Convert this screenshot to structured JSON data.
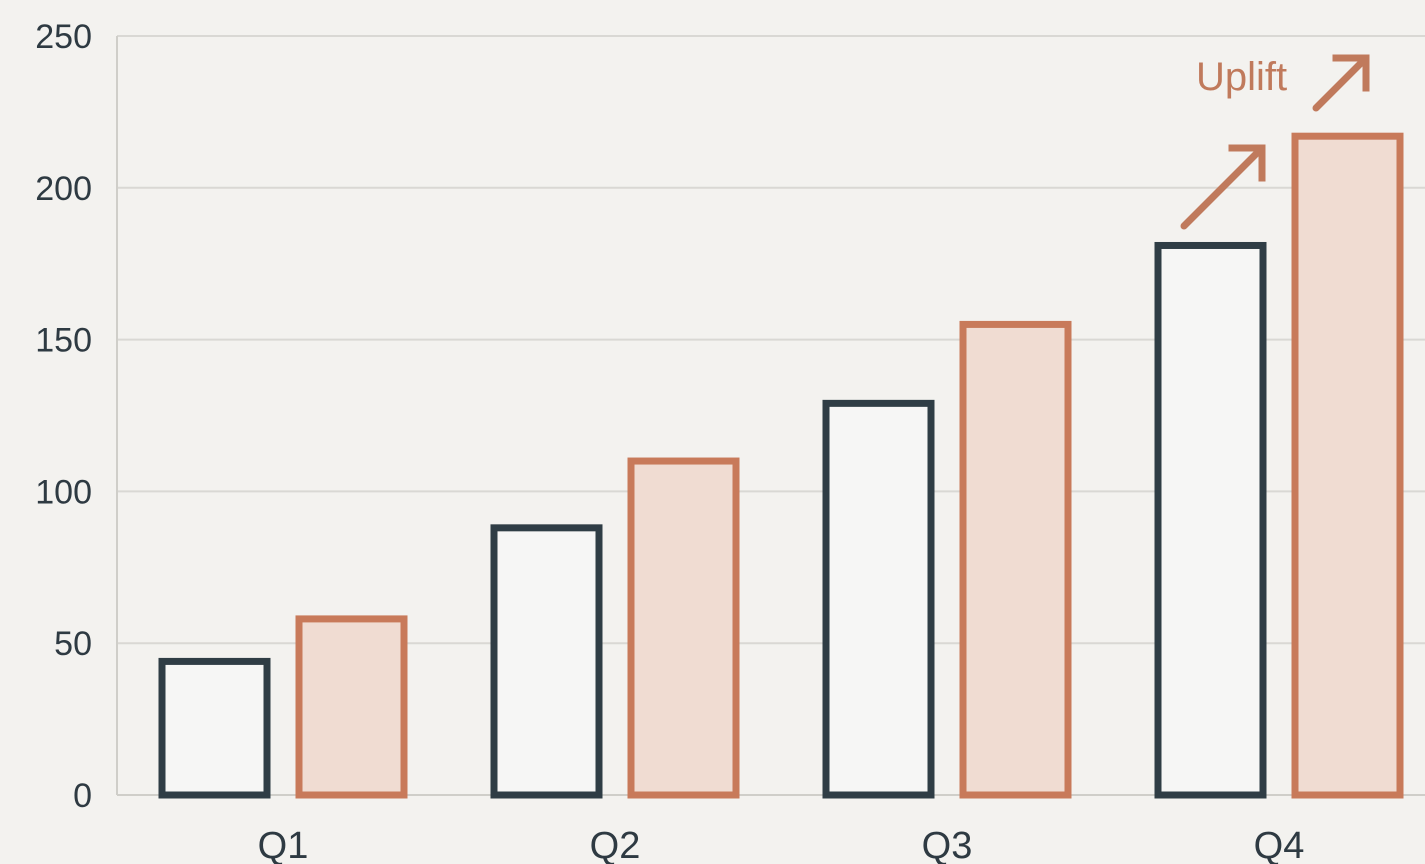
{
  "colors": {
    "background": "#f3f2ef",
    "series_a_stroke": "#2f3d45",
    "series_a_fill": "#f6f6f5",
    "series_b_stroke": "#c87a5a",
    "series_b_fill": "#f0dcd2",
    "annotation": "#c07a5c",
    "grid": "#d9d8d4"
  },
  "chart_data": {
    "type": "bar",
    "categories": [
      "Q1",
      "Q2",
      "Q3",
      "Q4"
    ],
    "series": [
      {
        "values": [
          44,
          88,
          129,
          181
        ]
      },
      {
        "values": [
          58,
          110,
          155,
          217
        ]
      }
    ],
    "title": "",
    "xlabel": "",
    "ylabel": "",
    "ylim": [
      0,
      250
    ],
    "yticks": [
      0,
      50,
      100,
      150,
      200,
      250
    ],
    "ytick_labels": [
      "0",
      "50",
      "100",
      "150",
      "200",
      "250"
    ],
    "grid": true,
    "legend": "none",
    "annotation": {
      "text": "Uplift",
      "category": "Q4",
      "icon": "arrow-up-right-icon"
    }
  }
}
